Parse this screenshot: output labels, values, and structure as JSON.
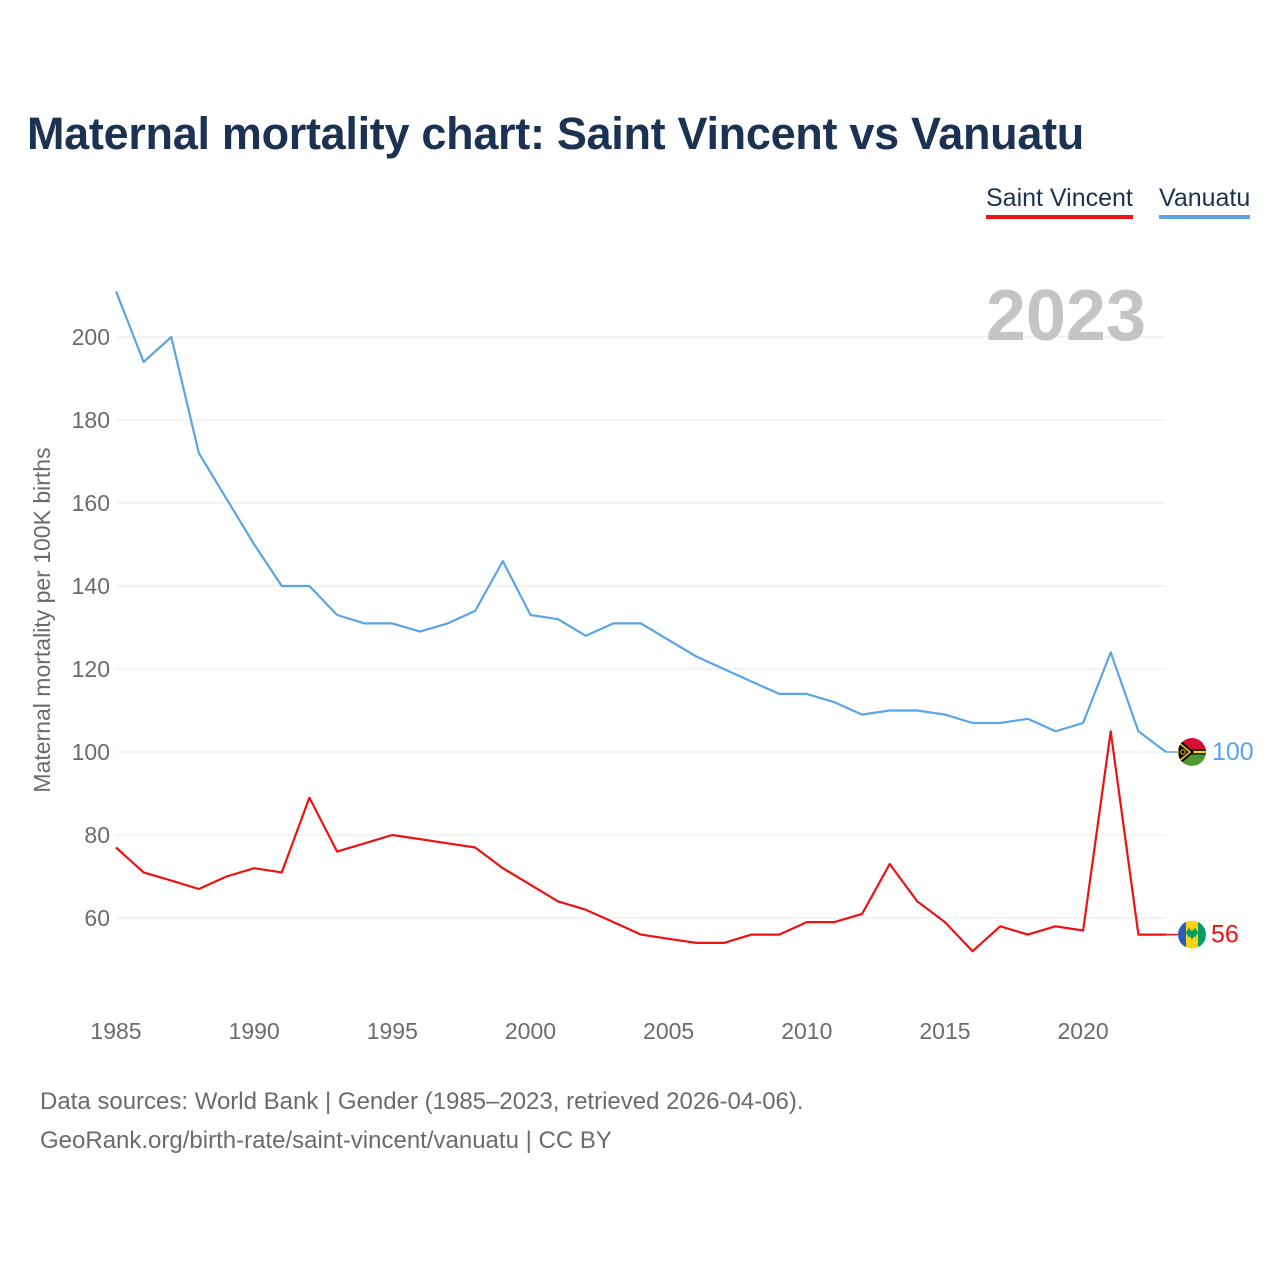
{
  "title": "Maternal mortality chart: Saint Vincent vs Vanuatu",
  "legend": [
    {
      "name": "Saint Vincent",
      "color": "#ee1111"
    },
    {
      "name": "Vanuatu",
      "color": "#5ba4e6"
    }
  ],
  "year_label": "2023",
  "footer": {
    "line1": "Data sources: World Bank | Gender (1985–2023, retrieved 2026-04-06).",
    "line2": "GeoRank.org/birth-rate/saint-vincent/vanuatu | CC BY"
  },
  "chart_data": {
    "type": "line",
    "title": "Maternal mortality chart: Saint Vincent vs Vanuatu",
    "xlabel": "",
    "ylabel": "Maternal mortality per 100K births",
    "xlim": [
      1985,
      2023
    ],
    "ylim": [
      40,
      215
    ],
    "yticks": [
      60,
      80,
      100,
      120,
      140,
      160,
      180,
      200
    ],
    "xticks": [
      1985,
      1990,
      1995,
      2000,
      2005,
      2010,
      2015,
      2020
    ],
    "grid": true,
    "x": [
      1985,
      1986,
      1987,
      1988,
      1989,
      1990,
      1991,
      1992,
      1993,
      1994,
      1995,
      1996,
      1997,
      1998,
      1999,
      2000,
      2001,
      2002,
      2003,
      2004,
      2005,
      2006,
      2007,
      2008,
      2009,
      2010,
      2011,
      2012,
      2013,
      2014,
      2015,
      2016,
      2017,
      2018,
      2019,
      2020,
      2021,
      2022,
      2023
    ],
    "series": [
      {
        "name": "Vanuatu",
        "color": "#5ba4e6",
        "end_label": "100",
        "values": [
          211,
          194,
          200,
          172,
          161,
          150,
          140,
          140,
          133,
          131,
          131,
          129,
          131,
          134,
          146,
          133,
          132,
          128,
          131,
          131,
          127,
          123,
          120,
          117,
          114,
          114,
          112,
          109,
          110,
          110,
          109,
          107,
          107,
          108,
          105,
          107,
          124,
          105,
          100
        ]
      },
      {
        "name": "Saint Vincent",
        "color": "#ee1111",
        "end_label": "56",
        "values": [
          77,
          71,
          69,
          67,
          70,
          72,
          71,
          89,
          76,
          78,
          80,
          79,
          78,
          77,
          72,
          68,
          64,
          62,
          59,
          56,
          55,
          54,
          54,
          56,
          56,
          59,
          59,
          61,
          73,
          64,
          59,
          52,
          58,
          56,
          58,
          57,
          105,
          56,
          56
        ]
      }
    ]
  }
}
